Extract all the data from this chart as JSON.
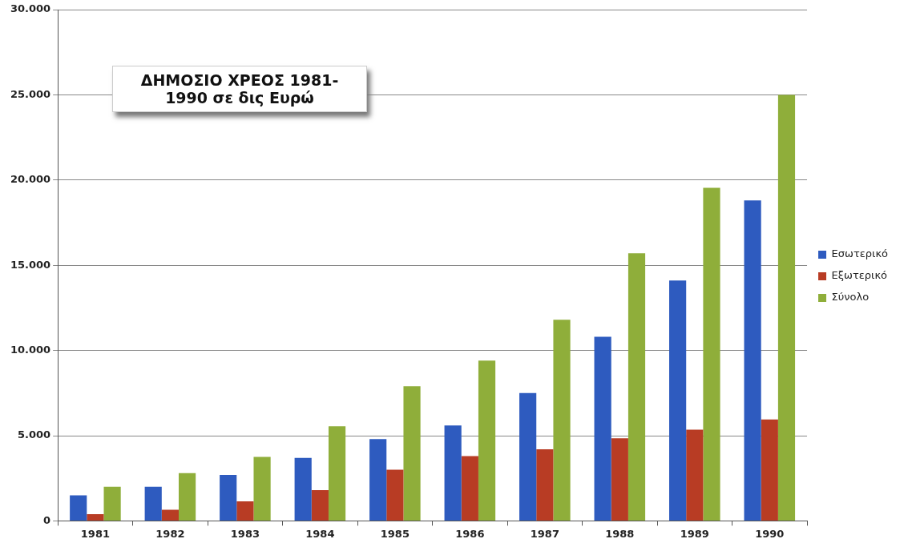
{
  "chart_data": {
    "type": "bar",
    "title": "ΔΗΜΟΣΙΟ ΧΡΕΟΣ 1981-\n1990 σε δις Ευρώ",
    "categories": [
      "1981",
      "1982",
      "1983",
      "1984",
      "1985",
      "1986",
      "1987",
      "1988",
      "1989",
      "1990"
    ],
    "series": [
      {
        "name": "Εσωτερικό",
        "color": "#2e5bbf",
        "values": [
          1500,
          2000,
          2700,
          3700,
          4800,
          5600,
          7500,
          10800,
          14100,
          18800
        ]
      },
      {
        "name": "Εξωτερικό",
        "color": "#b83c24",
        "values": [
          400,
          650,
          1150,
          1800,
          3000,
          3800,
          4200,
          4850,
          5350,
          5950
        ]
      },
      {
        "name": "Σύνολο",
        "color": "#8fae3a",
        "values": [
          2000,
          2800,
          3750,
          5550,
          7900,
          9400,
          11800,
          15700,
          19550,
          25000
        ]
      }
    ],
    "ylim": [
      0,
      30000
    ],
    "yticks": [
      {
        "value": 0,
        "label": "0"
      },
      {
        "value": 5000,
        "label": "5.000"
      },
      {
        "value": 10000,
        "label": "10.000"
      },
      {
        "value": 15000,
        "label": "15.000"
      },
      {
        "value": 20000,
        "label": "20.000"
      },
      {
        "value": 25000,
        "label": "25.000"
      },
      {
        "value": 30000,
        "label": "30.000"
      }
    ],
    "grid": "y",
    "legend": "right"
  }
}
